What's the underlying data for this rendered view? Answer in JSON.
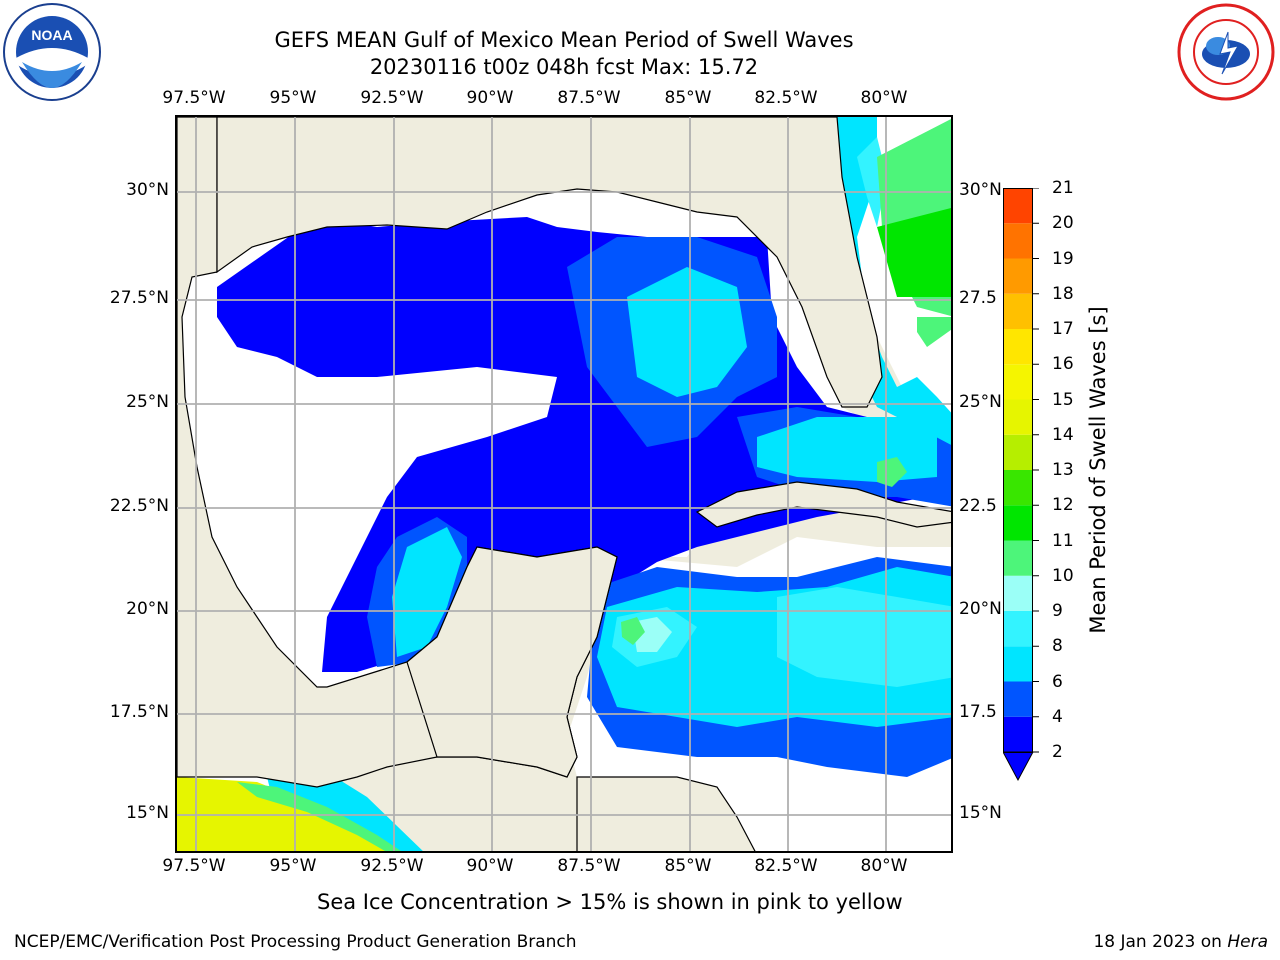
{
  "header": {
    "title": "GEFS MEAN Gulf of Mexico Mean Period of Swell Waves",
    "subtitle": "20230116 t00z 048h fcst   Max: 15.72"
  },
  "logos": {
    "left": {
      "icon": "noaa-logo-icon",
      "text": "NOAA"
    },
    "right": {
      "icon": "nws-logo-icon",
      "text": "NATIONAL WEATHER SERVICE"
    }
  },
  "axes": {
    "lon_labels": [
      "97.5°W",
      "95°W",
      "92.5°W",
      "90°W",
      "87.5°W",
      "85°W",
      "82.5°W",
      "80°W"
    ],
    "lat_labels": [
      "30°N",
      "27.5°N",
      "25°N",
      "22.5°N",
      "20°N",
      "17.5°N",
      "15°N"
    ],
    "lat_labels_right": [
      "30°N",
      "27.5",
      "25°N",
      "22.5",
      "20°N",
      "17.5",
      "15°N"
    ]
  },
  "colorbar": {
    "label": "Mean Period of Swell Waves [s]",
    "ticks": [
      "2",
      "4",
      "6",
      "8",
      "9",
      "10",
      "11",
      "12",
      "13",
      "14",
      "15",
      "16",
      "17",
      "18",
      "19",
      "20",
      "21"
    ],
    "colors": [
      "#0000ff",
      "#0055ff",
      "#00e5ff",
      "#33f3ff",
      "#9bfff7",
      "#4df57a",
      "#00e600",
      "#39e600",
      "#b6ee00",
      "#e6f500",
      "#f5f500",
      "#ffe600",
      "#ffc000",
      "#ff9a00",
      "#ff7300",
      "#ff4400",
      "#ff0000"
    ],
    "extend_color": "#0000ff"
  },
  "map_colors": {
    "land": "#efedde",
    "grid": "#b0b0b0"
  },
  "caption": "Sea Ice Concentration > 15% is shown in pink to yellow",
  "footer": {
    "left": "NCEP/EMC/Verification Post Processing Product Generation Branch",
    "right_prefix": "18 Jan 2023 on ",
    "right_host": "Hera"
  }
}
